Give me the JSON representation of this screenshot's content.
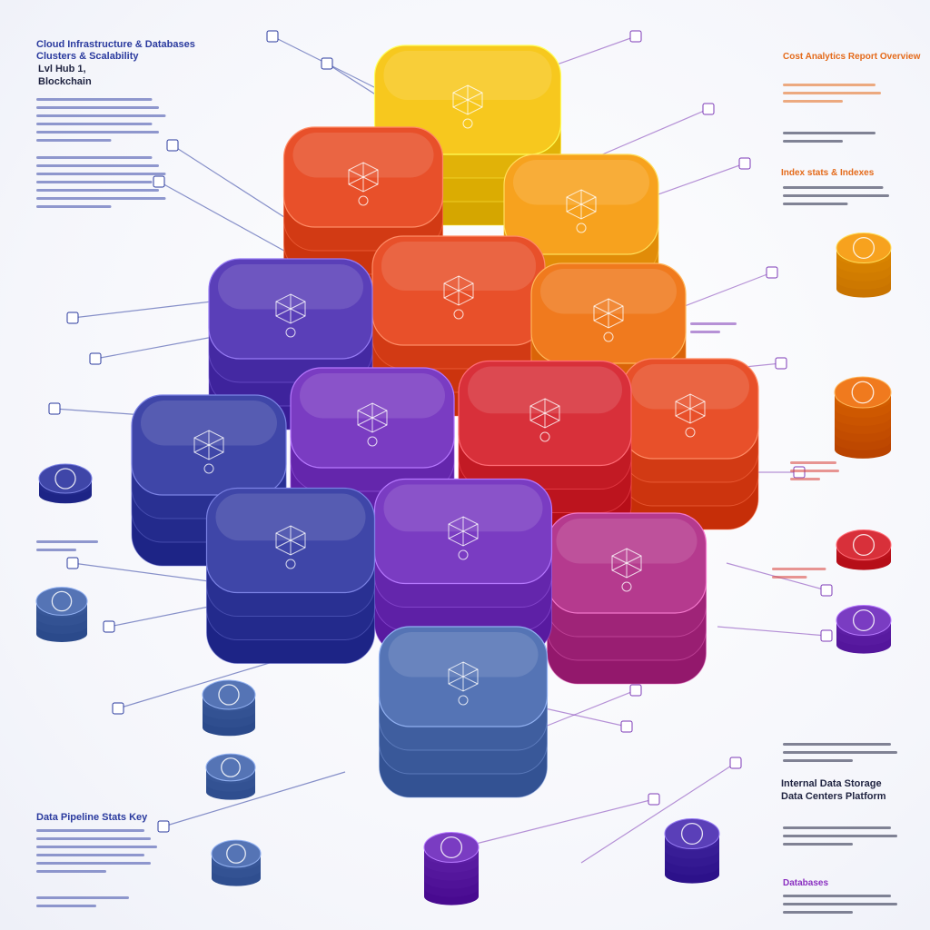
{
  "colors": {
    "yellow": "#f7c81e",
    "amber": "#f7a21e",
    "orange": "#f07a1e",
    "red_orange": "#e8502a",
    "red": "#d8303a",
    "magenta": "#b53a8e",
    "purple": "#7a3cc2",
    "violet": "#5a3fb8",
    "indigo": "#3f46a8",
    "steel_blue": "#5574b5",
    "line_blue": "#2a3a9e",
    "line_purple": "#7d3ab7"
  },
  "icons": [
    "cube-wireframe-icon",
    "network-node-icon",
    "shield-icon",
    "gear-icon",
    "database-icon",
    "cloud-icon",
    "lock-icon",
    "person-icon",
    "chat-icon",
    "document-icon",
    "chart-icon",
    "target-icon"
  ],
  "annotations": {
    "left_top_heading": "Cloud Infrastructure & Databases",
    "left_top_sub": "Clusters & Scalability",
    "left_mid_a": "Lvl Hub 1,",
    "left_mid_b": "Blockchain",
    "right_top_heading": "Cost Analytics Report Overview",
    "right_mid_heading": "Index stats & Indexes",
    "right_bottom_heading_a": "Internal Data Storage",
    "right_bottom_heading_b": "Data Centers Platform",
    "right_bottom_tag": "Databases",
    "bottom_left_heading": "Data Pipeline Stats Key"
  }
}
